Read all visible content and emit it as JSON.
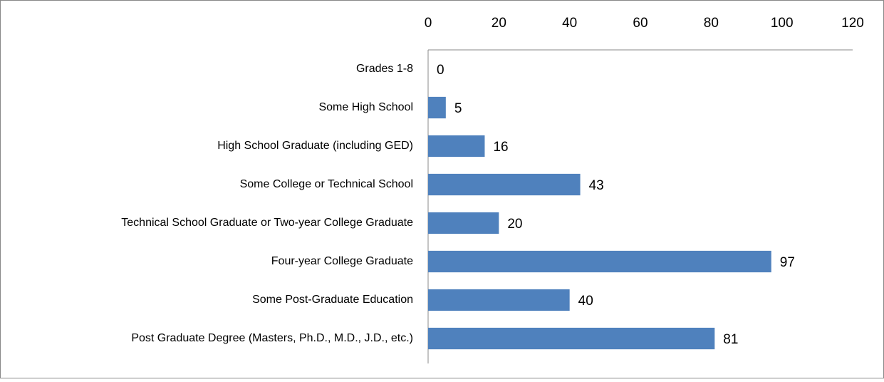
{
  "chart_data": {
    "type": "bar",
    "orientation": "horizontal",
    "categories": [
      "Grades 1-8",
      "Some High School",
      "High School Graduate (including GED)",
      "Some College or Technical School",
      "Technical School Graduate or Two-year College Graduate",
      "Four-year College Graduate",
      "Some Post-Graduate Education",
      "Post Graduate Degree (Masters, Ph.D., M.D., J.D., etc.)"
    ],
    "values": [
      0,
      5,
      16,
      43,
      20,
      97,
      40,
      81
    ],
    "color": "#4f81bd",
    "xlim": [
      0,
      120
    ],
    "xticks": [
      0,
      20,
      40,
      60,
      80,
      100,
      120
    ],
    "grid": false
  }
}
